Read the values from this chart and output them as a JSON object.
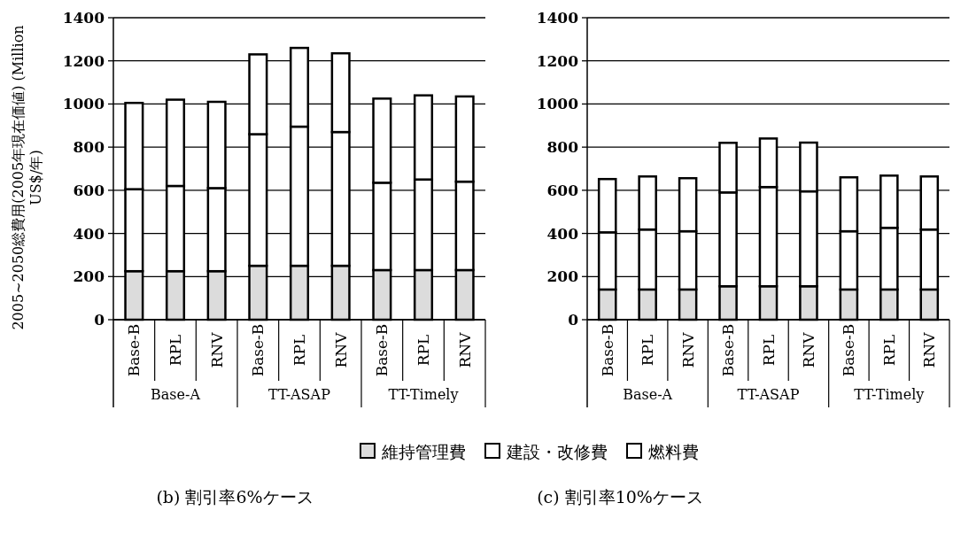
{
  "chart_data": [
    {
      "type": "bar",
      "title": "(b) 割引率6%ケース",
      "ylabel": "2005~2050総費用(2005年現在価値) (Million US$/年)",
      "categories": [
        "Base-B",
        "RPL",
        "RNV",
        "Base-B",
        "RPL",
        "RNV",
        "Base-B",
        "RPL",
        "RNV"
      ],
      "annotations": [
        "Base-A",
        "TT-ASAP",
        "TT-Timely"
      ],
      "stacked": true,
      "ylim": [
        0,
        1400
      ],
      "yticks": [
        0,
        200,
        400,
        600,
        800,
        1000,
        1200,
        1400
      ],
      "grid": "y",
      "legend": "bottom",
      "series": [
        {
          "name": "維持管理費",
          "color": "#dcdcdc",
          "values": [
            225,
            225,
            225,
            250,
            250,
            250,
            230,
            230,
            230
          ]
        },
        {
          "name": "建設・改修費",
          "color": "#ffffff",
          "values": [
            380,
            395,
            385,
            610,
            645,
            620,
            405,
            420,
            410
          ]
        },
        {
          "name": "燃料費",
          "color": "#ffffff",
          "values": [
            400,
            400,
            400,
            370,
            365,
            365,
            390,
            390,
            395
          ]
        }
      ]
    },
    {
      "type": "bar",
      "title": "(c) 割引率10%ケース",
      "categories": [
        "Base-B",
        "RPL",
        "RNV",
        "Base-B",
        "RPL",
        "RNV",
        "Base-B",
        "RPL",
        "RNV"
      ],
      "annotations": [
        "Base-A",
        "TT-ASAP",
        "TT-Timely"
      ],
      "stacked": true,
      "ylim": [
        0,
        1400
      ],
      "yticks": [
        0,
        200,
        400,
        600,
        800,
        1000,
        1200,
        1400
      ],
      "grid": "y",
      "series": [
        {
          "color": "#dcdcdc",
          "values": [
            140,
            140,
            140,
            155,
            155,
            155,
            140,
            140,
            140
          ]
        },
        {
          "color": "#ffffff",
          "values": [
            265,
            278,
            270,
            435,
            460,
            440,
            270,
            286,
            278
          ]
        },
        {
          "color": "#ffffff",
          "values": [
            247,
            246,
            246,
            230,
            225,
            226,
            250,
            242,
            246
          ]
        }
      ]
    }
  ]
}
